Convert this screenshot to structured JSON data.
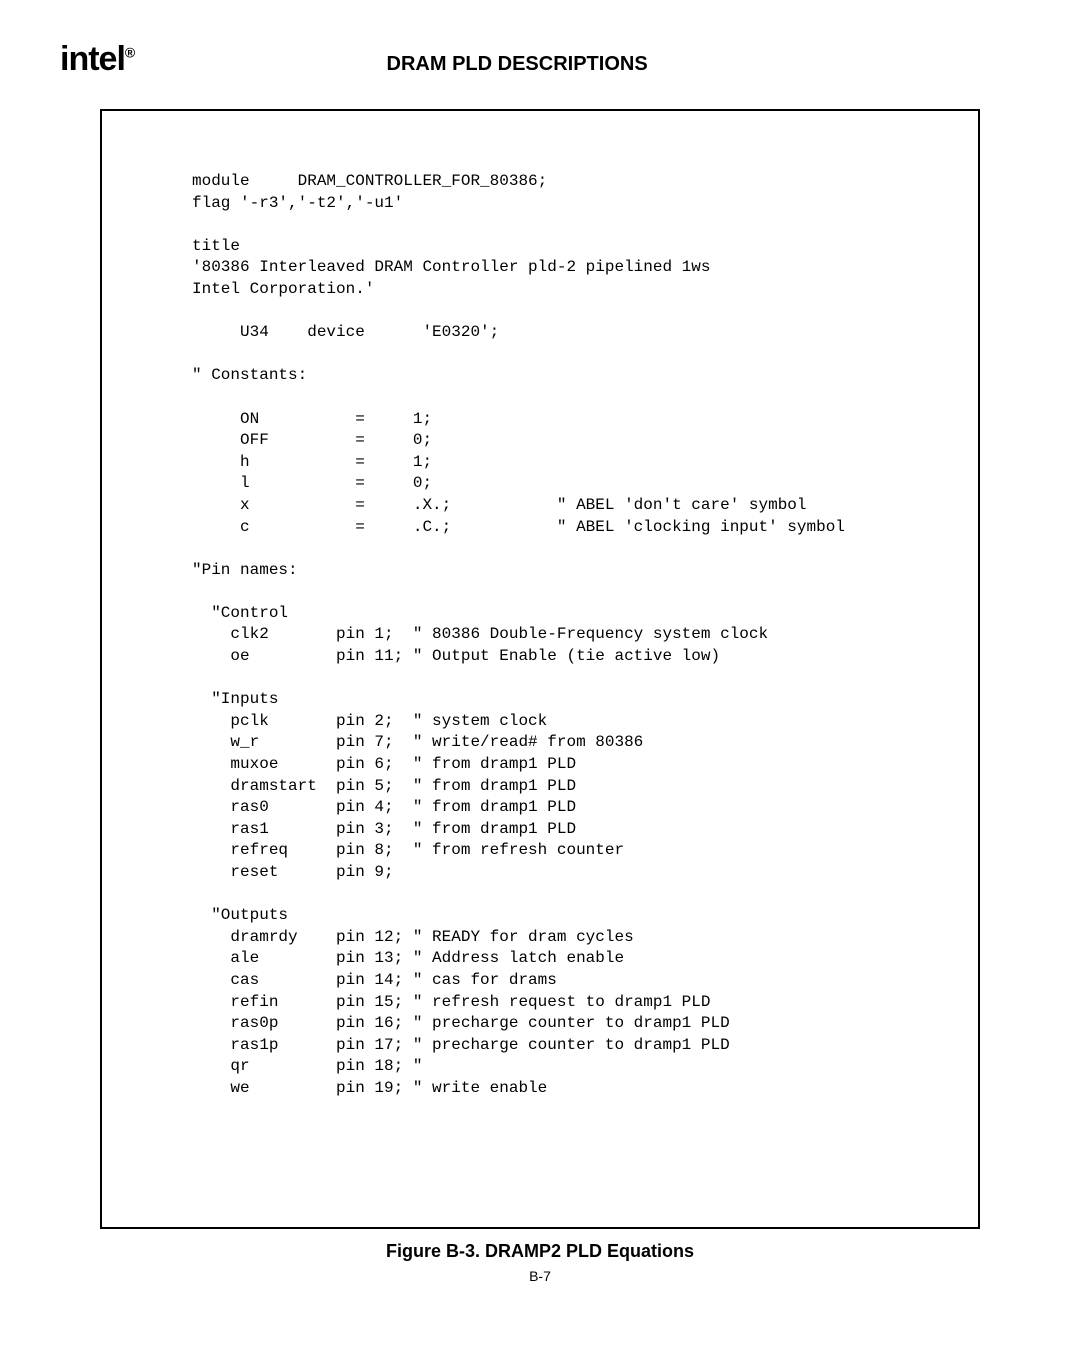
{
  "header": {
    "logo_text": "intel",
    "logo_reg": "®",
    "title": "DRAM PLD DESCRIPTIONS"
  },
  "code": {
    "font_size_pt": 12,
    "line_height": 1.35,
    "foreground": "#000000",
    "background": "#ffffff",
    "border_color": "#000000",
    "lines": [
      "module     DRAM_CONTROLLER_FOR_80386;",
      "flag '-r3','-t2','-u1'",
      "",
      "title",
      "'80386 Interleaved DRAM Controller pld-2 pipelined 1ws",
      "Intel Corporation.'",
      "",
      "     U34    device      'E0320';",
      "",
      "\" Constants:",
      "",
      "     ON          =     1;",
      "     OFF         =     0;",
      "     h           =     1;",
      "     l           =     0;",
      "     x           =     .X.;           \" ABEL 'don't care' symbol",
      "     c           =     .C.;           \" ABEL 'clocking input' symbol",
      "",
      "\"Pin names:",
      "",
      "  \"Control",
      "    clk2       pin 1;  \" 80386 Double-Frequency system clock",
      "    oe         pin 11; \" Output Enable (tie active low)",
      "",
      "  \"Inputs",
      "    pclk       pin 2;  \" system clock",
      "    w_r        pin 7;  \" write/read# from 80386",
      "    muxoe      pin 6;  \" from dramp1 PLD",
      "    dramstart  pin 5;  \" from dramp1 PLD",
      "    ras0       pin 4;  \" from dramp1 PLD",
      "    ras1       pin 3;  \" from dramp1 PLD",
      "    refreq     pin 8;  \" from refresh counter",
      "    reset      pin 9;",
      "",
      "  \"Outputs",
      "    dramrdy    pin 12; \" READY for dram cycles",
      "    ale        pin 13; \" Address latch enable",
      "    cas        pin 14; \" cas for drams",
      "    refin      pin 15; \" refresh request to dramp1 PLD",
      "    ras0p      pin 16; \" precharge counter to dramp1 PLD",
      "    ras1p      pin 17; \" precharge counter to dramp1 PLD",
      "    qr         pin 18; \"",
      "    we         pin 19; \" write enable"
    ]
  },
  "caption": "Figure B-3. DRAMP2 PLD Equations",
  "page_number": "B-7"
}
